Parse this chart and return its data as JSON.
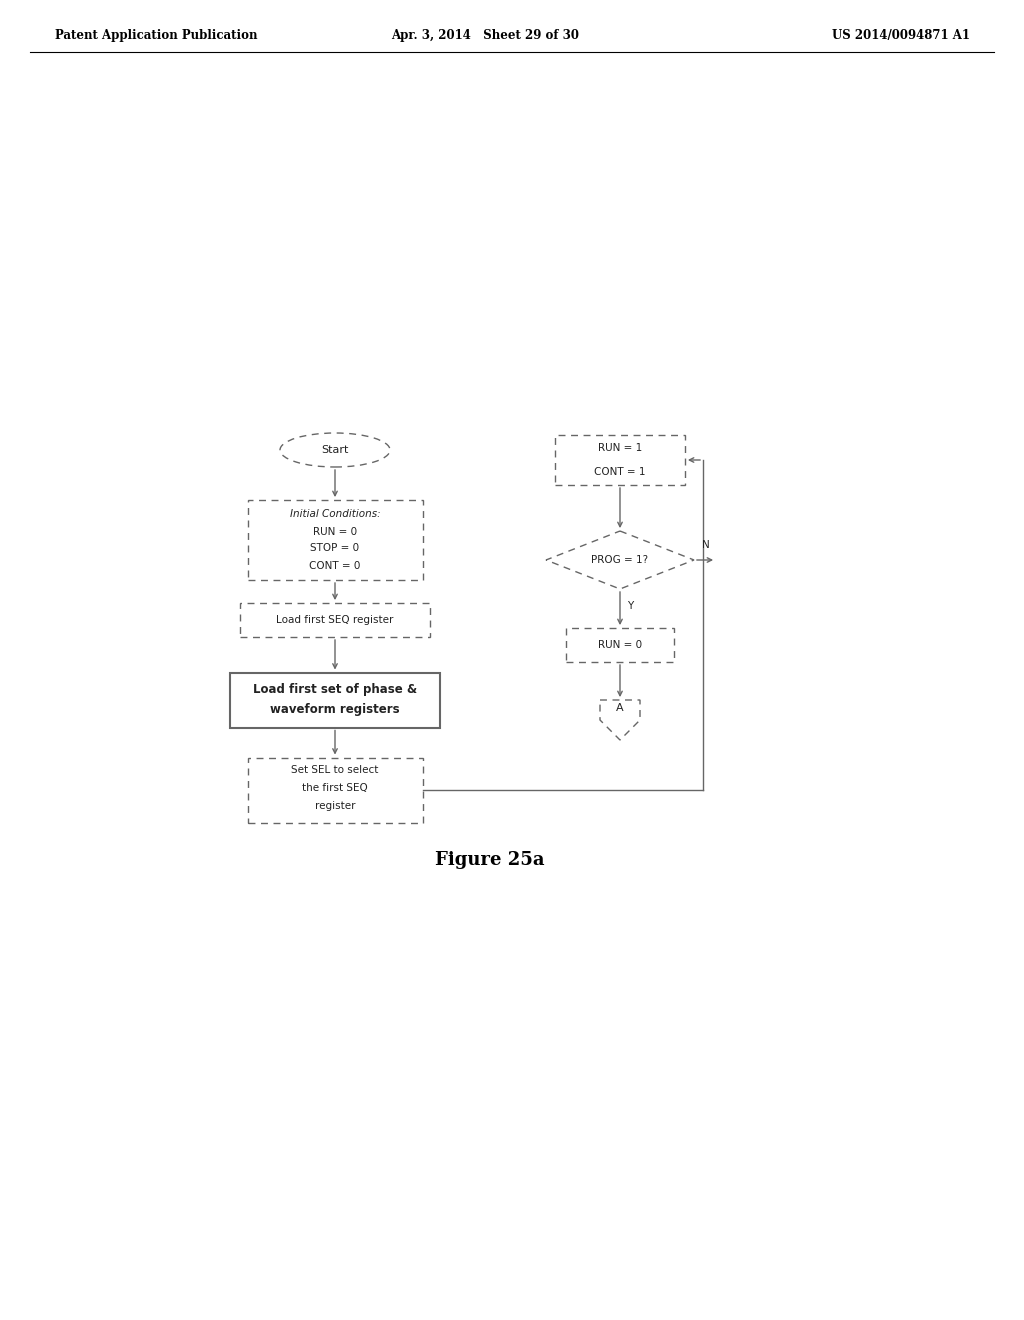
{
  "title": "Figure 25a",
  "header_left": "Patent Application Publication",
  "header_center": "Apr. 3, 2014   Sheet 29 of 30",
  "header_right": "US 2014/0094871 A1",
  "bg_color": "#ffffff",
  "line_color": "#666666",
  "text_color": "#222222",
  "box_fill": "#ffffff",
  "fig_caption": "Figure 25a",
  "start_text": "Start",
  "ic_text_lines": [
    "Initial Conditions:",
    "RUN = 0",
    "STOP = 0",
    "CONT = 0"
  ],
  "seq_text": "Load first SEQ register",
  "lfs_text_lines": [
    "Load first set of phase &",
    "waveform registers"
  ],
  "sel_text_lines": [
    "Set SEL to select",
    "the first SEQ",
    "register"
  ],
  "run1_text_lines": [
    "RUN = 1",
    "CONT = 1"
  ],
  "prog_text": "PROG = 1?",
  "run0_text": "RUN = 0",
  "a_text": "A"
}
